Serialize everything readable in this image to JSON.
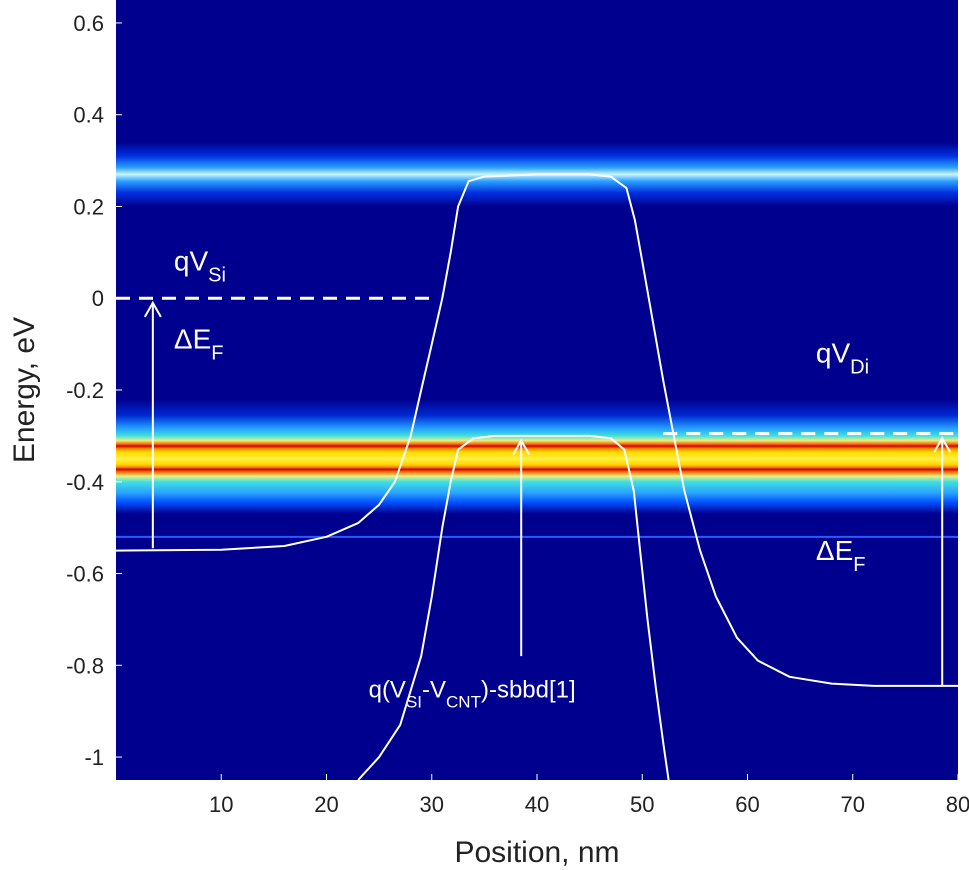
{
  "chart_data": {
    "type": "line",
    "title": "",
    "xlabel": "Position, nm",
    "ylabel": "Energy, eV",
    "xlim": [
      0,
      80
    ],
    "ylim": [
      -1.05,
      0.65
    ],
    "x_ticks": [
      10,
      20,
      30,
      40,
      50,
      60,
      70,
      80
    ],
    "y_ticks": [
      -1,
      -0.8,
      -0.6,
      -0.4,
      -0.2,
      0,
      0.2,
      0.4,
      0.6
    ],
    "x_tick_labels": [
      "10",
      "20",
      "30",
      "40",
      "50",
      "60",
      "70",
      "80"
    ],
    "y_tick_labels": [
      "-1",
      "-0.8",
      "-0.6",
      "-0.4",
      "-0.2",
      "0",
      "0.2",
      "0.4",
      "0.6"
    ],
    "background": {
      "type": "heatmap",
      "base_color": "#00008f",
      "bands": [
        {
          "energy": 0.27,
          "halfwidth": 0.045,
          "peak": "light-blue"
        },
        {
          "energy": -0.35,
          "halfwidth": 0.11,
          "peak": "yellow-red"
        },
        {
          "energy": -0.52,
          "halfwidth": 0.003,
          "peak": "blue-line"
        }
      ]
    },
    "series": [
      {
        "points": [
          [
            0,
            -0.55
          ],
          [
            10,
            -0.548
          ],
          [
            16,
            -0.54
          ],
          [
            20,
            -0.52
          ],
          [
            23,
            -0.49
          ],
          [
            25,
            -0.45
          ],
          [
            26.5,
            -0.4
          ],
          [
            28,
            -0.3
          ],
          [
            29,
            -0.2
          ],
          [
            30,
            -0.1
          ],
          [
            31,
            0.0
          ],
          [
            31.8,
            0.1
          ],
          [
            32.5,
            0.2
          ],
          [
            33.5,
            0.255
          ],
          [
            35,
            0.265
          ],
          [
            40,
            0.27
          ],
          [
            45,
            0.27
          ],
          [
            47,
            0.265
          ],
          [
            48.5,
            0.24
          ],
          [
            49.3,
            0.17
          ],
          [
            50,
            0.08
          ],
          [
            51,
            -0.05
          ],
          [
            52,
            -0.18
          ],
          [
            53,
            -0.3
          ],
          [
            54,
            -0.42
          ],
          [
            55.5,
            -0.55
          ],
          [
            57,
            -0.65
          ],
          [
            59,
            -0.74
          ],
          [
            61,
            -0.79
          ],
          [
            64,
            -0.825
          ],
          [
            68,
            -0.84
          ],
          [
            72,
            -0.845
          ],
          [
            80,
            -0.845
          ]
        ]
      },
      {
        "points": [
          [
            23,
            -1.05
          ],
          [
            25,
            -1.0
          ],
          [
            27,
            -0.93
          ],
          [
            29,
            -0.78
          ],
          [
            30,
            -0.65
          ],
          [
            31,
            -0.5
          ],
          [
            31.8,
            -0.4
          ],
          [
            32.5,
            -0.33
          ],
          [
            34,
            -0.305
          ],
          [
            36,
            -0.3
          ],
          [
            40,
            -0.3
          ],
          [
            45,
            -0.3
          ],
          [
            47,
            -0.305
          ],
          [
            48.3,
            -0.33
          ],
          [
            49.2,
            -0.42
          ],
          [
            49.8,
            -0.55
          ],
          [
            50.5,
            -0.7
          ],
          [
            51.3,
            -0.85
          ],
          [
            52,
            -0.97
          ],
          [
            52.5,
            -1.05
          ]
        ]
      }
    ],
    "reference_lines": [
      {
        "x_range": [
          0,
          30
        ],
        "y": 0,
        "style": "dashed"
      },
      {
        "x_range": [
          52,
          80
        ],
        "y": -0.295,
        "style": "dashed"
      }
    ],
    "arrows": [
      {
        "x": 3.5,
        "from_y": -0.545,
        "to_y": -0.01
      },
      {
        "x": 38.5,
        "from_y": -0.78,
        "to_y": -0.31
      },
      {
        "x": 78.5,
        "from_y": -0.845,
        "to_y": -0.305
      }
    ],
    "annotations": [
      {
        "id": "qvsi",
        "base": "qV",
        "sub": "Si",
        "tail": "",
        "x": 5.5,
        "y": 0.06
      },
      {
        "id": "def-left",
        "base": "ΔE",
        "sub": "F",
        "tail": "",
        "x": 5.5,
        "y": -0.11
      },
      {
        "id": "qvdi",
        "base": "qV",
        "sub": "Di",
        "tail": "",
        "x": 66.5,
        "y": -0.14
      },
      {
        "id": "def-right",
        "base": "ΔE",
        "sub": "F",
        "tail": "",
        "x": 66.5,
        "y": -0.57
      },
      {
        "id": "sbbd",
        "base": "q(V",
        "sub": "SI",
        "mid": "-V",
        "sub2": "CNT",
        "tail": ")-sbbd[1]",
        "x": 24.0,
        "y": -0.87
      }
    ]
  }
}
